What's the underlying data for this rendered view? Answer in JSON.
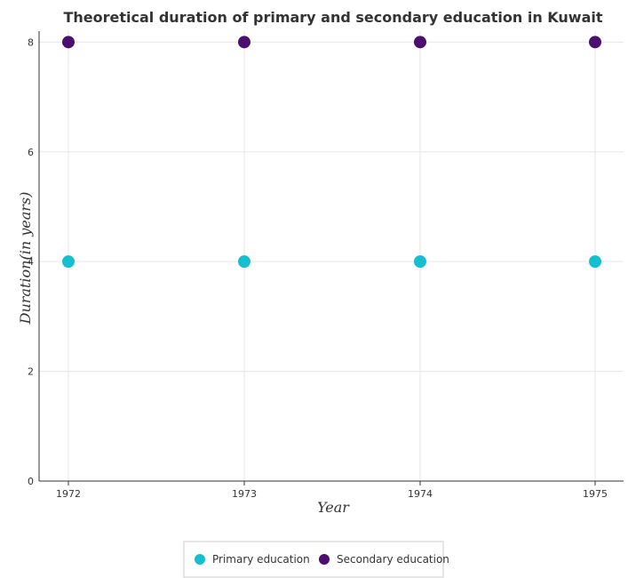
{
  "chart_data": {
    "type": "scatter",
    "title": "Theoretical duration of primary and secondary education in Kuwait",
    "xlabel": "Year",
    "ylabel": "Duration(in years)",
    "categories": [
      "1972",
      "1973",
      "1974",
      "1975"
    ],
    "ylim": [
      0,
      8.2
    ],
    "yticks": [
      "0",
      "2",
      "4",
      "6",
      "8"
    ],
    "grid": true,
    "legend_position": "bottom-center",
    "series": [
      {
        "name": "Primary education",
        "color": "#17becf",
        "values": [
          4,
          4,
          4,
          4
        ]
      },
      {
        "name": "Secondary education",
        "color": "#4b0f6e",
        "values": [
          8,
          8,
          8,
          8
        ]
      }
    ]
  }
}
